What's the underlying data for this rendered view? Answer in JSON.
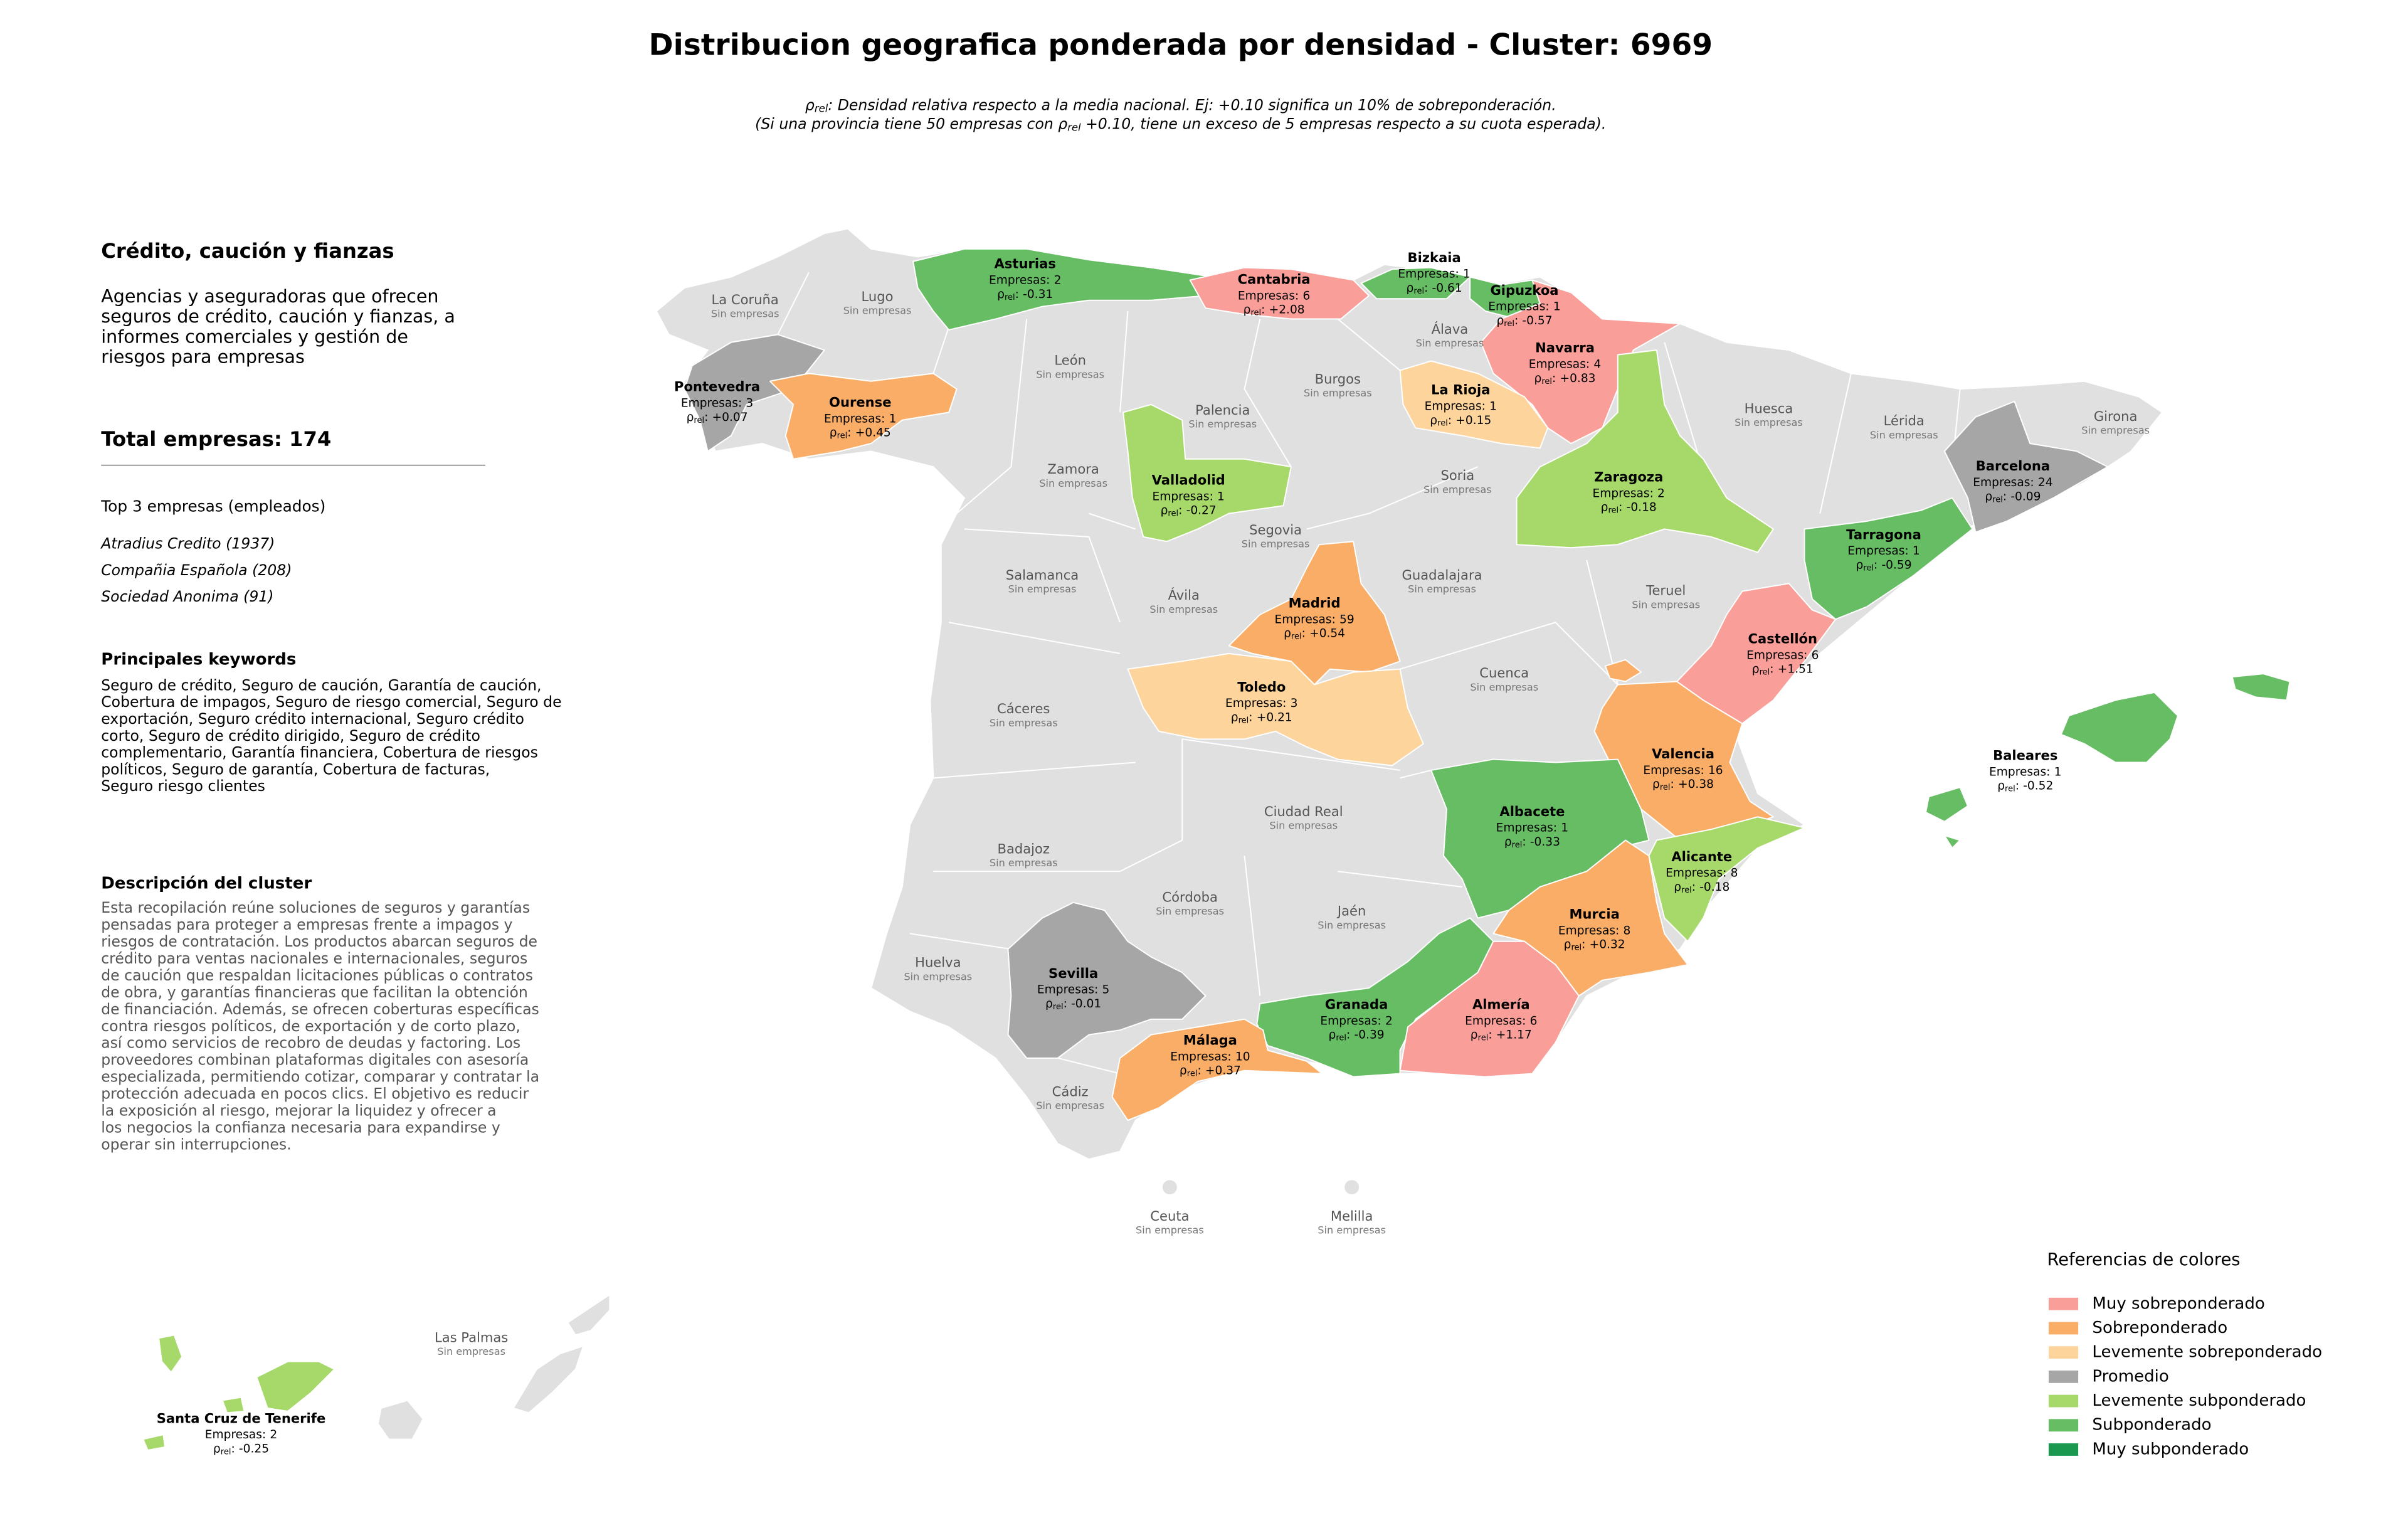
{
  "title": "Distribucion geografica ponderada por densidad - Cluster: 6969",
  "rho_symbol": "ρ",
  "rho_sub": "rel",
  "rho_suffix": ":",
  "subtitle": [
    {
      "after": ": Densidad relativa respecto a la media nacional. Ej: +0.10 significa un 10% de sobreponderación."
    },
    {
      "before": "(Si una provincia tiene 50 empresas con ",
      "after": " +0.10, tiene un exceso de 5 empresas respecto a su cuota esperada)."
    }
  ],
  "sidebar": {
    "heading": "Crédito, caución y fianzas",
    "description_lines": [
      "Agencias y aseguradoras que ofrecen",
      "seguros de crédito, caución y fianzas, a",
      "informes comerciales y gestión de",
      "riesgos para empresas"
    ],
    "total": "Total empresas: 174",
    "top_title": "Top 3 empresas (empleados)",
    "top_items": [
      "Atradius Credito (1937)",
      "Compañia Española (208)",
      "Sociedad Anonima (91)"
    ],
    "keywords_title": "Principales keywords",
    "keywords_lines": [
      "Seguro de crédito, Seguro de caución, Garantía de caución,",
      "Cobertura de impagos, Seguro de riesgo comercial, Seguro de",
      "exportación, Seguro crédito internacional, Seguro crédito",
      "corto, Seguro de crédito dirigido, Seguro de crédito",
      "complementario, Garantía financiera, Cobertura de riesgos",
      "políticos, Seguro de garantía, Cobertura de facturas,",
      "Seguro riesgo clientes"
    ],
    "cluster_title": "Descripción del cluster",
    "cluster_lines": [
      "Esta recopilación reúne soluciones de seguros y garantías",
      "pensadas para proteger a empresas frente a impagos y",
      "riesgos de contratación. Los productos abarcan seguros de",
      "crédito para ventas nacionales e internacionales, seguros",
      "de caución que respaldan licitaciones públicas o contratos",
      "de obra, y garantías financieras que facilitan la obtención",
      "de financiación. Además, se ofrecen coberturas específicas",
      "contra riesgos políticos, de exportación y de corto plazo,",
      "así como servicios de recobro de deudas y factoring. Los",
      "proveedores combinan plataformas digitales con asesoría",
      "especializada, permitiendo cotizar, comparar y contratar la",
      "protección adecuada en pocos clics. El objetivo es reducir",
      "la exposición al riesgo, mejorar la liquidez y ofrecer a",
      "los negocios la confianza necesaria para expandirse y",
      "operar sin interrupciones."
    ]
  },
  "empresas_label": "Empresas:",
  "no_data_label": "Sin empresas",
  "no_data_color": "#e0e0e0",
  "provinces": [
    {
      "name": "Asturias",
      "empresas": 2,
      "rho": -0.31,
      "level": 5
    },
    {
      "name": "Cantabria",
      "empresas": 6,
      "rho": 2.08,
      "rho_label": "+2.08",
      "level": 0
    },
    {
      "name": "Bizkaia",
      "empresas": 1,
      "rho": -0.61,
      "level": 5
    },
    {
      "name": "Gipuzkoa",
      "empresas": 1,
      "rho": -0.57,
      "level": 5
    },
    {
      "name": "Navarra",
      "empresas": 4,
      "rho": 0.83,
      "rho_label": "+0.83",
      "level": 0
    },
    {
      "name": "La Rioja",
      "empresas": 1,
      "rho": 0.15,
      "rho_label": "+0.15",
      "level": 2
    },
    {
      "name": "Pontevedra",
      "empresas": 3,
      "rho": 0.07,
      "rho_label": "+0.07",
      "level": 3
    },
    {
      "name": "Ourense",
      "empresas": 1,
      "rho": 0.45,
      "rho_label": "+0.45",
      "level": 1
    },
    {
      "name": "Valladolid",
      "empresas": 1,
      "rho": -0.27,
      "level": 4
    },
    {
      "name": "Zaragoza",
      "empresas": 2,
      "rho": -0.18,
      "level": 4
    },
    {
      "name": "Barcelona",
      "empresas": 24,
      "rho": -0.09,
      "level": 3
    },
    {
      "name": "Tarragona",
      "empresas": 1,
      "rho": -0.59,
      "level": 5
    },
    {
      "name": "Madrid",
      "empresas": 59,
      "rho": 0.54,
      "rho_label": "+0.54",
      "level": 1
    },
    {
      "name": "Castellón",
      "empresas": 6,
      "rho": 1.51,
      "rho_label": "+1.51",
      "level": 0
    },
    {
      "name": "Toledo",
      "empresas": 3,
      "rho": 0.21,
      "rho_label": "+0.21",
      "level": 2
    },
    {
      "name": "Valencia",
      "empresas": 16,
      "rho": 0.38,
      "rho_label": "+0.38",
      "level": 1
    },
    {
      "name": "Baleares",
      "empresas": 1,
      "rho": -0.52,
      "level": 5
    },
    {
      "name": "Albacete",
      "empresas": 1,
      "rho": -0.33,
      "level": 5
    },
    {
      "name": "Alicante",
      "empresas": 8,
      "rho": -0.18,
      "level": 4
    },
    {
      "name": "Murcia",
      "empresas": 8,
      "rho": 0.32,
      "rho_label": "+0.32",
      "level": 1
    },
    {
      "name": "Sevilla",
      "empresas": 5,
      "rho": -0.01,
      "level": 3
    },
    {
      "name": "Granada",
      "empresas": 2,
      "rho": -0.39,
      "level": 5
    },
    {
      "name": "Almería",
      "empresas": 6,
      "rho": 1.17,
      "rho_label": "+1.17",
      "level": 0
    },
    {
      "name": "Málaga",
      "empresas": 10,
      "rho": 0.37,
      "rho_label": "+0.37",
      "level": 1
    },
    {
      "name": "Santa Cruz de Tenerife",
      "empresas": 2,
      "rho": -0.25,
      "level": 4
    },
    {
      "name": "La Coruña"
    },
    {
      "name": "Lugo"
    },
    {
      "name": "León"
    },
    {
      "name": "Burgos"
    },
    {
      "name": "Álava"
    },
    {
      "name": "Huesca"
    },
    {
      "name": "Lérida"
    },
    {
      "name": "Girona"
    },
    {
      "name": "Palencia"
    },
    {
      "name": "Zamora"
    },
    {
      "name": "Soria"
    },
    {
      "name": "Segovia"
    },
    {
      "name": "Salamanca"
    },
    {
      "name": "Guadalajara"
    },
    {
      "name": "Teruel"
    },
    {
      "name": "Ávila"
    },
    {
      "name": "Cuenca"
    },
    {
      "name": "Cáceres"
    },
    {
      "name": "Ciudad Real"
    },
    {
      "name": "Badajoz"
    },
    {
      "name": "Córdoba"
    },
    {
      "name": "Jaén"
    },
    {
      "name": "Huelva"
    },
    {
      "name": "Cádiz"
    },
    {
      "name": "Ceuta"
    },
    {
      "name": "Melilla"
    },
    {
      "name": "Las Palmas"
    }
  ],
  "legend": {
    "title": "Referencias de colores",
    "items": [
      {
        "label": "Muy sobreponderado",
        "color": "#f99e98"
      },
      {
        "label": "Sobreponderado",
        "color": "#f9ad66"
      },
      {
        "label": "Levemente sobreponderado",
        "color": "#fdd49b"
      },
      {
        "label": "Promedio",
        "color": "#a6a6a6"
      },
      {
        "label": "Levemente subponderado",
        "color": "#a6d96a"
      },
      {
        "label": "Subponderado",
        "color": "#66bd63"
      },
      {
        "label": "Muy subponderado",
        "color": "#1a9850"
      }
    ]
  }
}
